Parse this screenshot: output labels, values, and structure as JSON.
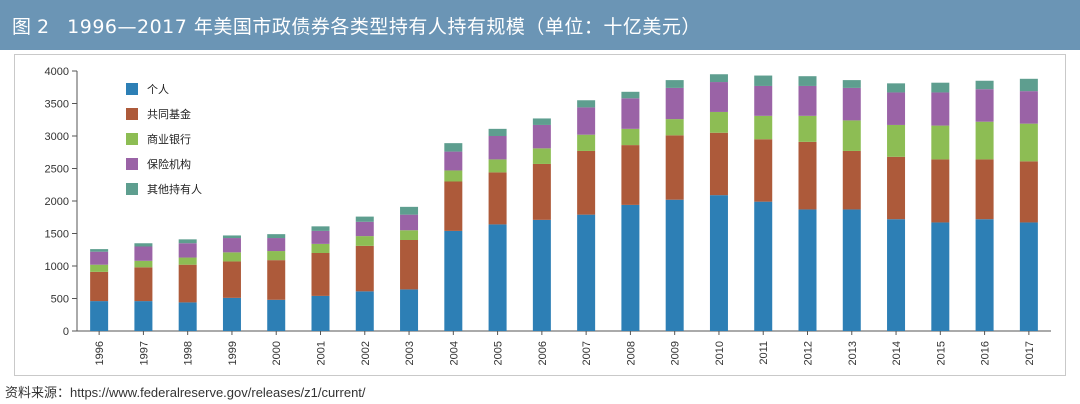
{
  "header": {
    "figure_number": "图 2",
    "title": "1996—2017 年美国市政债券各类型持有人持有规模（单位：十亿美元）"
  },
  "source_text": "资料来源：https://www.federalreserve.gov/releases/z1/current/",
  "chart_data": {
    "type": "bar",
    "stacked": true,
    "title": "1996—2017 年美国市政债券各类型持有人持有规模（单位：十亿美元）",
    "xlabel": "",
    "ylabel": "",
    "categories": [
      "1996",
      "1997",
      "1998",
      "1999",
      "2000",
      "2001",
      "2002",
      "2003",
      "2004",
      "2005",
      "2006",
      "2007",
      "2008",
      "2009",
      "2010",
      "2011",
      "2012",
      "2013",
      "2014",
      "2015",
      "2016",
      "2017"
    ],
    "ylim": [
      0,
      4000
    ],
    "yticks": [
      0,
      500,
      1000,
      1500,
      2000,
      2500,
      3000,
      3500,
      4000
    ],
    "grid": false,
    "legend_position": "top-left",
    "series": [
      {
        "name": "个人",
        "color": "#2d7fb5",
        "values": [
          460,
          460,
          440,
          510,
          480,
          540,
          610,
          640,
          1540,
          1640,
          1710,
          1790,
          1940,
          2020,
          2090,
          1990,
          1870,
          1870,
          1720,
          1670,
          1720,
          1670
        ]
      },
      {
        "name": "共同基金",
        "color": "#ad5a3a",
        "values": [
          450,
          520,
          580,
          560,
          610,
          660,
          700,
          760,
          760,
          800,
          860,
          980,
          920,
          990,
          960,
          960,
          1040,
          900,
          960,
          970,
          920,
          940
        ]
      },
      {
        "name": "商业银行",
        "color": "#8dbd54",
        "values": [
          110,
          100,
          110,
          140,
          140,
          140,
          150,
          150,
          170,
          200,
          240,
          250,
          250,
          250,
          320,
          360,
          400,
          470,
          490,
          520,
          580,
          580
        ]
      },
      {
        "name": "保险机构",
        "color": "#9a63a6",
        "values": [
          200,
          220,
          220,
          220,
          200,
          200,
          220,
          240,
          290,
          360,
          360,
          420,
          470,
          480,
          460,
          460,
          460,
          500,
          500,
          510,
          500,
          500
        ]
      },
      {
        "name": "其他持有人",
        "color": "#5e9e8f",
        "values": [
          40,
          50,
          60,
          40,
          60,
          70,
          80,
          120,
          130,
          110,
          100,
          110,
          100,
          120,
          120,
          160,
          150,
          120,
          140,
          150,
          130,
          190
        ]
      }
    ]
  }
}
